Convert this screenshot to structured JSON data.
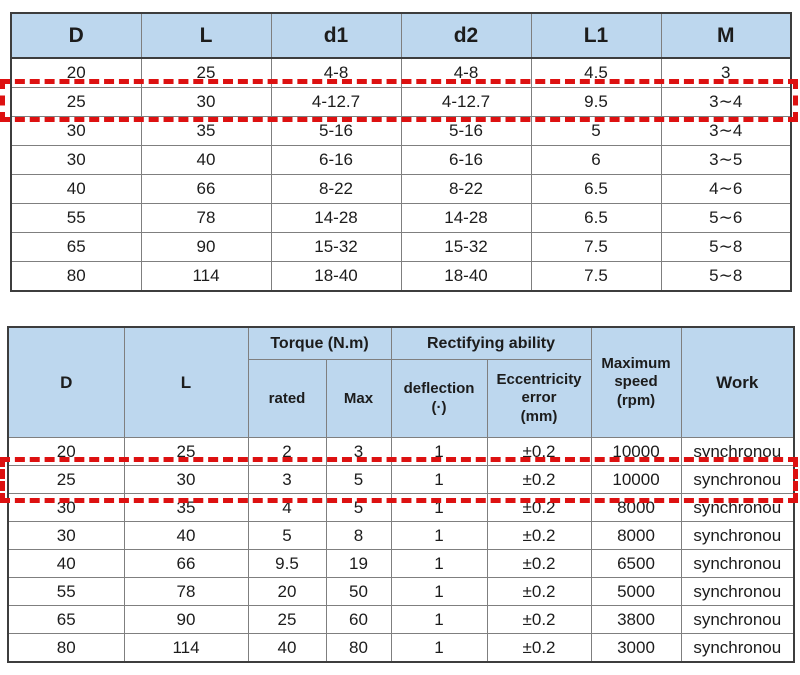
{
  "colors": {
    "header_bg": "#bdd7ee",
    "grid_line": "#7f7f7f",
    "outer_border": "#3d3d3d",
    "highlight_red": "#dd1111",
    "text": "#1c1c1c",
    "background": "#ffffff"
  },
  "table1": {
    "headers": [
      "D",
      "L",
      "d1",
      "d2",
      "L1",
      "M"
    ],
    "rows": [
      [
        "20",
        "25",
        "4-8",
        "4-8",
        "4.5",
        "3"
      ],
      [
        "25",
        "30",
        "4-12.7",
        "4-12.7",
        "9.5",
        "3∼4"
      ],
      [
        "30",
        "35",
        "5-16",
        "5-16",
        "5",
        "3∼4"
      ],
      [
        "30",
        "40",
        "6-16",
        "6-16",
        "6",
        "3∼5"
      ],
      [
        "40",
        "66",
        "8-22",
        "8-22",
        "6.5",
        "4∼6"
      ],
      [
        "55",
        "78",
        "14-28",
        "14-28",
        "6.5",
        "5∼6"
      ],
      [
        "65",
        "90",
        "15-32",
        "15-32",
        "7.5",
        "5∼8"
      ],
      [
        "80",
        "114",
        "18-40",
        "18-40",
        "7.5",
        "5∼8"
      ]
    ],
    "highlighted_row_index": 1,
    "highlighted_row_values": [
      "25",
      "30",
      "4-12.7",
      "4-12.7",
      "9.5",
      "3∼4"
    ]
  },
  "table2": {
    "header": {
      "d": "D",
      "l": "L",
      "torque_group": "Torque (N.m)",
      "rated": "rated",
      "max": "Max",
      "rectifying_group": "Rectifying ability",
      "deflection": "deflection\n(·)",
      "eccentricity": "Eccentricity\nerror\n(mm)",
      "max_speed": "Maximum\nspeed\n(rpm)",
      "work": "Work"
    },
    "rows": [
      [
        "20",
        "25",
        "2",
        "3",
        "1",
        "±0.2",
        "10000",
        "synchronou"
      ],
      [
        "25",
        "30",
        "3",
        "5",
        "1",
        "±0.2",
        "10000",
        "synchronou"
      ],
      [
        "30",
        "35",
        "4",
        "5",
        "1",
        "±0.2",
        "8000",
        "synchronou"
      ],
      [
        "30",
        "40",
        "5",
        "8",
        "1",
        "±0.2",
        "8000",
        "synchronou"
      ],
      [
        "40",
        "66",
        "9.5",
        "19",
        "1",
        "±0.2",
        "6500",
        "synchronou"
      ],
      [
        "55",
        "78",
        "20",
        "50",
        "1",
        "±0.2",
        "5000",
        "synchronou"
      ],
      [
        "65",
        "90",
        "25",
        "60",
        "1",
        "±0.2",
        "3800",
        "synchronou"
      ],
      [
        "80",
        "114",
        "40",
        "80",
        "1",
        "±0.2",
        "3000",
        "synchronou"
      ]
    ],
    "highlighted_row_index": 1,
    "highlighted_row_values": [
      "25",
      "30",
      "3",
      "5",
      "1",
      "±0.2",
      "10000",
      "synchronou"
    ]
  }
}
